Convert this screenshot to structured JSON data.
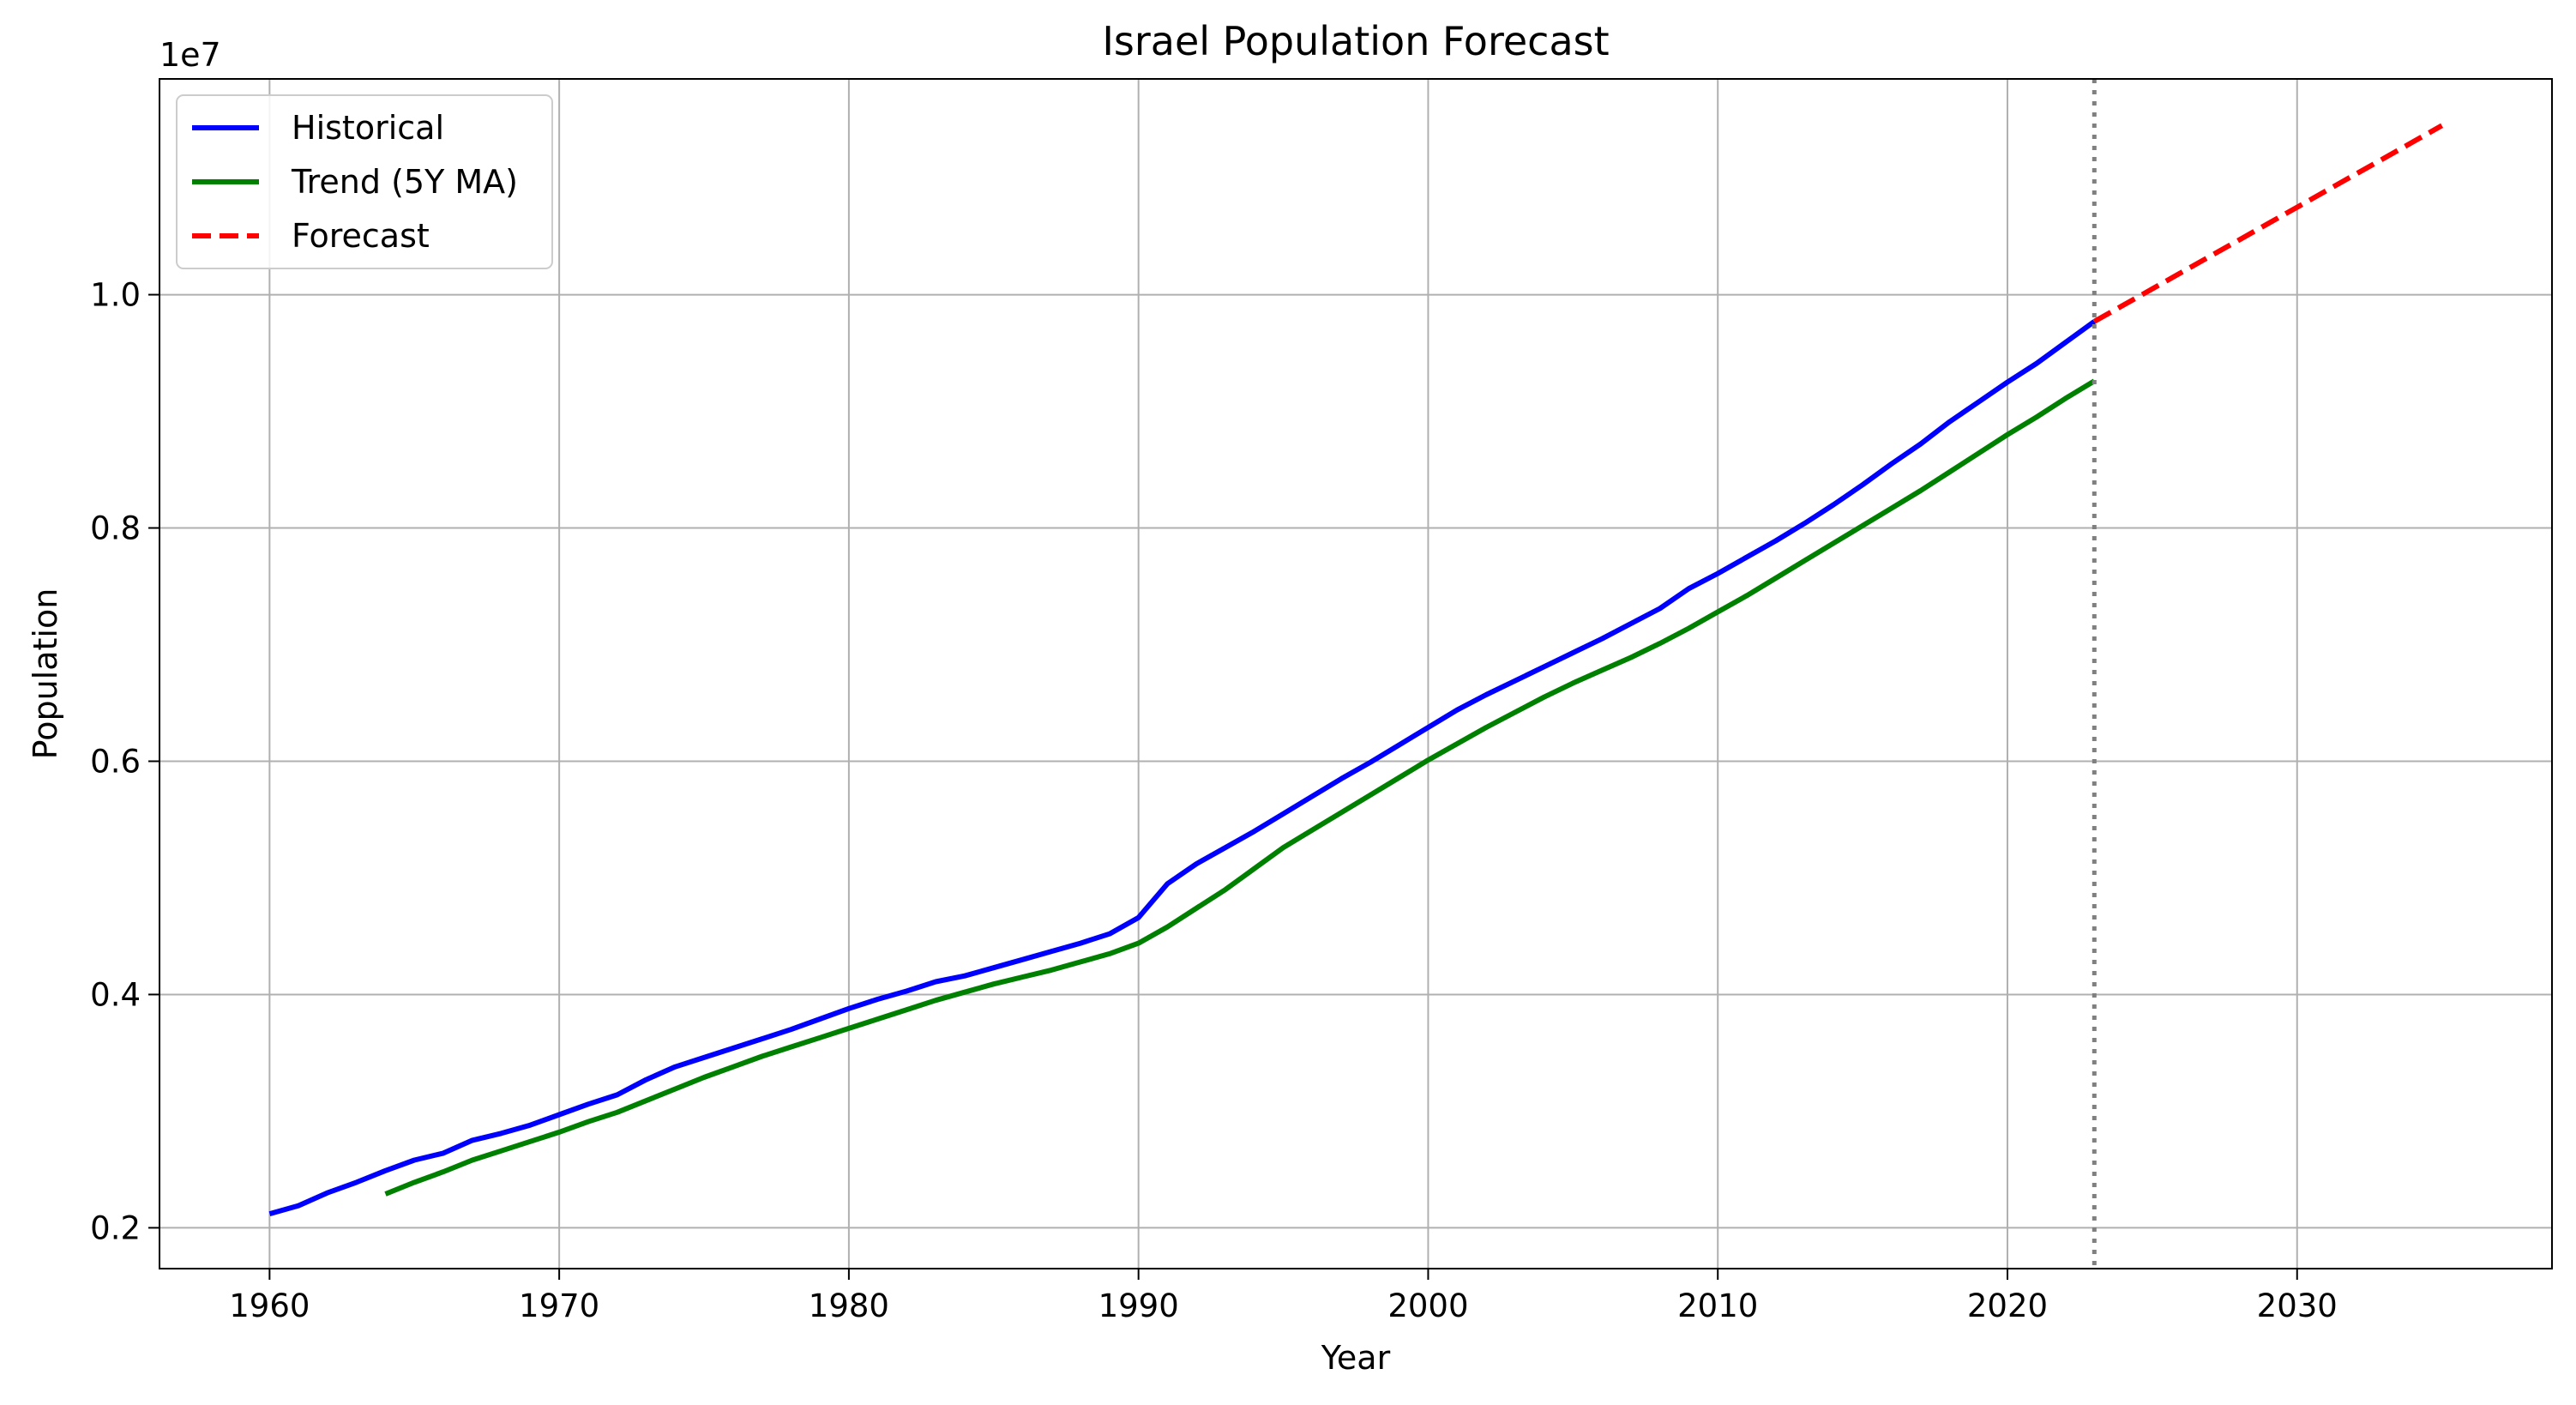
{
  "chart_data": {
    "type": "line",
    "title": "Israel Population Forecast",
    "xlabel": "Year",
    "ylabel": "Population",
    "y_offset_label": "1e7",
    "xlim": [
      1956.2,
      2038.8
    ],
    "ylim": [
      0.165,
      1.185
    ],
    "y_unit_scale": 10000000,
    "xticks": [
      1960,
      1970,
      1980,
      1990,
      2000,
      2010,
      2020,
      2030
    ],
    "yticks": [
      0.2,
      0.4,
      0.6,
      0.8,
      1.0
    ],
    "ytick_labels": [
      "0.2",
      "0.4",
      "0.6",
      "0.8",
      "1.0"
    ],
    "grid": true,
    "legend_location": "upper-left",
    "vline": {
      "x": 2023,
      "color": "#808080",
      "style": "dotted"
    },
    "series": [
      {
        "name": "Historical",
        "color": "#0000ff",
        "style": "solid",
        "x": [
          1960,
          1961,
          1962,
          1963,
          1964,
          1965,
          1966,
          1967,
          1968,
          1969,
          1970,
          1971,
          1972,
          1973,
          1974,
          1975,
          1976,
          1977,
          1978,
          1979,
          1980,
          1981,
          1982,
          1983,
          1984,
          1985,
          1986,
          1987,
          1988,
          1989,
          1990,
          1991,
          1992,
          1993,
          1994,
          1995,
          1996,
          1997,
          1998,
          1999,
          2000,
          2001,
          2002,
          2003,
          2004,
          2005,
          2006,
          2007,
          2008,
          2009,
          2010,
          2011,
          2012,
          2013,
          2014,
          2015,
          2016,
          2017,
          2018,
          2019,
          2020,
          2021,
          2022,
          2023
        ],
        "y": [
          0.212,
          0.219,
          0.23,
          0.239,
          0.249,
          0.258,
          0.264,
          0.275,
          0.281,
          0.288,
          0.297,
          0.306,
          0.314,
          0.327,
          0.338,
          0.346,
          0.354,
          0.362,
          0.37,
          0.379,
          0.388,
          0.396,
          0.403,
          0.411,
          0.416,
          0.423,
          0.43,
          0.437,
          0.444,
          0.452,
          0.466,
          0.495,
          0.512,
          0.526,
          0.54,
          0.555,
          0.57,
          0.585,
          0.599,
          0.614,
          0.629,
          0.644,
          0.657,
          0.669,
          0.681,
          0.693,
          0.705,
          0.718,
          0.731,
          0.748,
          0.761,
          0.775,
          0.789,
          0.804,
          0.82,
          0.837,
          0.855,
          0.872,
          0.891,
          0.908,
          0.925,
          0.941,
          0.959,
          0.977
        ]
      },
      {
        "name": "Trend (5Y MA)",
        "color": "#008000",
        "style": "solid",
        "x": [
          1964,
          1965,
          1966,
          1967,
          1968,
          1969,
          1970,
          1971,
          1972,
          1973,
          1974,
          1975,
          1976,
          1977,
          1978,
          1979,
          1980,
          1981,
          1982,
          1983,
          1984,
          1985,
          1986,
          1987,
          1988,
          1989,
          1990,
          1991,
          1992,
          1993,
          1994,
          1995,
          1996,
          1997,
          1998,
          1999,
          2000,
          2001,
          2002,
          2003,
          2004,
          2005,
          2006,
          2007,
          2008,
          2009,
          2010,
          2011,
          2012,
          2013,
          2014,
          2015,
          2016,
          2017,
          2018,
          2019,
          2020,
          2021,
          2022,
          2023
        ],
        "y": [
          0.229,
          0.239,
          0.248,
          0.258,
          0.266,
          0.274,
          0.282,
          0.291,
          0.299,
          0.309,
          0.319,
          0.329,
          0.338,
          0.347,
          0.355,
          0.363,
          0.371,
          0.379,
          0.387,
          0.395,
          0.402,
          0.409,
          0.415,
          0.421,
          0.428,
          0.435,
          0.444,
          0.458,
          0.474,
          0.49,
          0.508,
          0.526,
          0.541,
          0.556,
          0.571,
          0.586,
          0.601,
          0.615,
          0.629,
          0.642,
          0.655,
          0.667,
          0.678,
          0.689,
          0.701,
          0.714,
          0.728,
          0.742,
          0.757,
          0.772,
          0.787,
          0.802,
          0.817,
          0.832,
          0.848,
          0.864,
          0.88,
          0.895,
          0.911,
          0.926
        ]
      },
      {
        "name": "Forecast",
        "color": "#ff0000",
        "style": "dashed",
        "x": [
          2023,
          2024,
          2025,
          2026,
          2027,
          2028,
          2029,
          2030,
          2031,
          2032,
          2033,
          2034,
          2035
        ],
        "y": [
          0.977,
          0.991,
          1.005,
          1.019,
          1.033,
          1.047,
          1.061,
          1.075,
          1.089,
          1.103,
          1.117,
          1.131,
          1.145
        ]
      }
    ]
  }
}
